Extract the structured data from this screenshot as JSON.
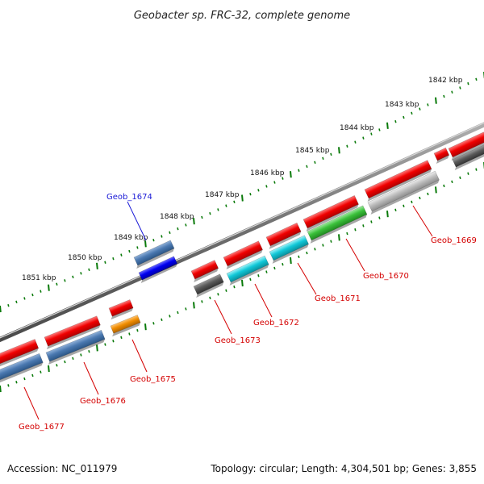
{
  "title": "Geobacter sp. FRC-32, complete genome",
  "footer": {
    "accession": "Accession: NC_011979",
    "summary": "Topology: circular; Length: 4,304,501 bp; Genes: 3,855"
  },
  "ruler": {
    "ticks": [
      {
        "kbp": 1842,
        "label": "1842 kbp"
      },
      {
        "kbp": 1843,
        "label": "1843 kbp"
      },
      {
        "kbp": 1844,
        "label": "1844 kbp"
      },
      {
        "kbp": 1845,
        "label": "1845 kbp"
      },
      {
        "kbp": 1846,
        "label": "1846 kbp"
      },
      {
        "kbp": 1847,
        "label": "1847 kbp"
      },
      {
        "kbp": 1848,
        "label": "1848 kbp"
      },
      {
        "kbp": 1849,
        "label": "1849 kbp"
      },
      {
        "kbp": 1850,
        "label": "1850 kbp"
      },
      {
        "kbp": 1851,
        "label": "1851 kbp"
      }
    ],
    "tick_color": "#0a7a0a"
  },
  "colors": {
    "red": "#e00000",
    "steelblue": "#4a78b0",
    "blue": "#0000e0",
    "cyan": "#11c4d4",
    "green": "#3ab83a",
    "gray": "#5a5a5a",
    "lightgray": "#b8b8b8",
    "orange": "#f08c00",
    "backbone": "#7a7a7a"
  },
  "gene_labels": [
    {
      "name": "Geob_1669",
      "color": "red"
    },
    {
      "name": "Geob_1670",
      "color": "red"
    },
    {
      "name": "Geob_1671",
      "color": "red"
    },
    {
      "name": "Geob_1672",
      "color": "red"
    },
    {
      "name": "Geob_1673",
      "color": "red"
    },
    {
      "name": "Geob_1674",
      "color": "blue"
    },
    {
      "name": "Geob_1675",
      "color": "red"
    },
    {
      "name": "Geob_1676",
      "color": "red"
    },
    {
      "name": "Geob_1677",
      "color": "red"
    }
  ]
}
